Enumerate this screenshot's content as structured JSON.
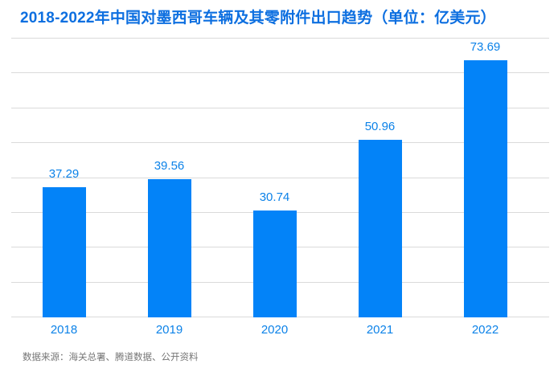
{
  "title": "2018-2022年中国对墨西哥车辆及其零附件出口趋势（单位：亿美元）",
  "source": "数据来源：海关总署、腾道数据、公开资料",
  "colors": {
    "background": "#ffffff",
    "title": "#0d6fe0",
    "bar": "#0383f8",
    "value_label": "#0c82e8",
    "axis_label": "#0c82e8",
    "gridline": "#dadada",
    "source_text": "#757575"
  },
  "chart_data": {
    "type": "bar",
    "title": "2018-2022年中国对墨西哥车辆及其零附件出口趋势（单位：亿美元）",
    "categories": [
      "2018",
      "2019",
      "2020",
      "2021",
      "2022"
    ],
    "values": [
      37.29,
      39.56,
      30.74,
      50.96,
      73.69
    ],
    "value_labels": [
      "37.29",
      "39.56",
      "30.74",
      "50.96",
      "73.69"
    ],
    "xlabel": "",
    "ylabel": "",
    "unit": "亿美元",
    "ylim": [
      0,
      80
    ],
    "gridline_step": 10,
    "grid": true,
    "legend": false,
    "source_note": "数据来源：海关总署、腾道数据、公开资料"
  }
}
